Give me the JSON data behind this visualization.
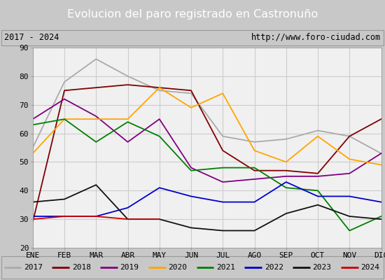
{
  "title": "Evolucion del paro registrado en Castronuño",
  "subtitle_left": "2017 - 2024",
  "subtitle_right": "http://www.foro-ciudad.com",
  "months": [
    "ENE",
    "FEB",
    "MAR",
    "ABR",
    "MAY",
    "JUN",
    "JUL",
    "AGO",
    "SEP",
    "OCT",
    "NOV",
    "DIC"
  ],
  "ylim": [
    20,
    90
  ],
  "yticks": [
    20,
    30,
    40,
    50,
    60,
    70,
    80,
    90
  ],
  "series": {
    "2017": {
      "color": "#aaaaaa",
      "values": [
        55,
        78,
        86,
        80,
        75,
        74,
        59,
        57,
        58,
        61,
        59,
        53
      ]
    },
    "2018": {
      "color": "#800000",
      "values": [
        29,
        75,
        76,
        77,
        76,
        75,
        54,
        47,
        47,
        46,
        59,
        65
      ]
    },
    "2019": {
      "color": "#800080",
      "values": [
        65,
        72,
        66,
        57,
        65,
        48,
        43,
        44,
        45,
        45,
        46,
        53
      ]
    },
    "2020": {
      "color": "#ffa500",
      "values": [
        53,
        65,
        65,
        65,
        76,
        69,
        74,
        54,
        50,
        59,
        51,
        49
      ]
    },
    "2021": {
      "color": "#008000",
      "values": [
        63,
        65,
        57,
        64,
        59,
        47,
        48,
        48,
        41,
        40,
        26,
        31
      ]
    },
    "2022": {
      "color": "#0000cc",
      "values": [
        31,
        31,
        31,
        34,
        41,
        38,
        36,
        36,
        43,
        38,
        38,
        36
      ]
    },
    "2023": {
      "color": "#111111",
      "values": [
        36,
        37,
        42,
        30,
        30,
        27,
        26,
        26,
        32,
        35,
        31,
        30
      ]
    },
    "2024": {
      "color": "#cc0000",
      "values": [
        30,
        31,
        31,
        30,
        30,
        null,
        null,
        null,
        null,
        null,
        null,
        null
      ]
    }
  },
  "title_bg_color": "#4472c4",
  "title_color": "#ffffff",
  "subtitle_bg": "#ffffff",
  "plot_bg": "#f0f0f0",
  "outer_bg": "#c8c8c8",
  "grid_color": "#cccccc",
  "legend_bg": "#ffffff"
}
